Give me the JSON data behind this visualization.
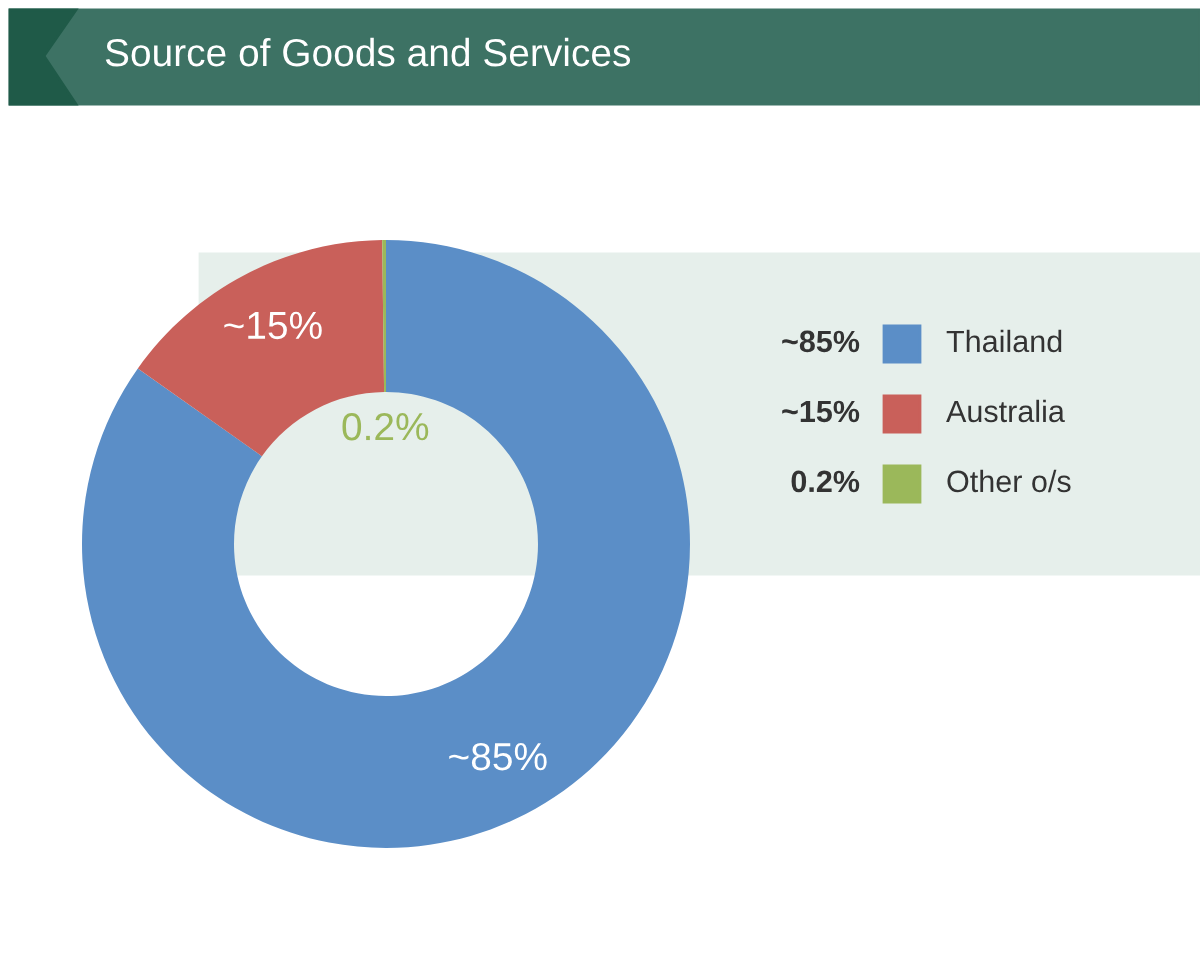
{
  "chart_data": {
    "type": "donut",
    "title": "Source of Goods and Services",
    "categories": [
      "Thailand",
      "Australia",
      "Other o/s"
    ],
    "values": [
      84.8,
      15.0,
      0.2
    ],
    "colors": [
      "#5b8ec7",
      "#c9605a",
      "#9bb85a"
    ],
    "value_labels": [
      "~85%",
      "~15%",
      "0.2%"
    ],
    "legend": "right"
  }
}
